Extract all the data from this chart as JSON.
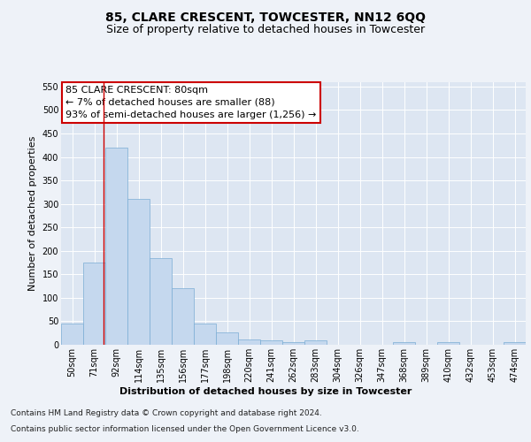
{
  "title": "85, CLARE CRESCENT, TOWCESTER, NN12 6QQ",
  "subtitle": "Size of property relative to detached houses in Towcester",
  "xlabel": "Distribution of detached houses by size in Towcester",
  "ylabel": "Number of detached properties",
  "footer_line1": "Contains HM Land Registry data © Crown copyright and database right 2024.",
  "footer_line2": "Contains public sector information licensed under the Open Government Licence v3.0.",
  "bar_labels": [
    "50sqm",
    "71sqm",
    "92sqm",
    "114sqm",
    "135sqm",
    "156sqm",
    "177sqm",
    "198sqm",
    "220sqm",
    "241sqm",
    "262sqm",
    "283sqm",
    "304sqm",
    "326sqm",
    "347sqm",
    "368sqm",
    "389sqm",
    "410sqm",
    "432sqm",
    "453sqm",
    "474sqm"
  ],
  "bar_values": [
    46,
    175,
    420,
    310,
    185,
    120,
    46,
    26,
    12,
    10,
    6,
    10,
    0,
    0,
    0,
    5,
    0,
    5,
    0,
    0,
    5
  ],
  "bar_color": "#c5d8ee",
  "bar_edge_color": "#7aadd4",
  "ylim": [
    0,
    560
  ],
  "yticks": [
    0,
    50,
    100,
    150,
    200,
    250,
    300,
    350,
    400,
    450,
    500,
    550
  ],
  "annotation_line1": "85 CLARE CRESCENT: 80sqm",
  "annotation_line2": "← 7% of detached houses are smaller (88)",
  "annotation_line3": "93% of semi-detached houses are larger (1,256) →",
  "red_line_x": 1.42,
  "bg_color": "#eef2f8",
  "plot_bg_color": "#dde6f2",
  "grid_color": "#ffffff",
  "title_fontsize": 10,
  "subtitle_fontsize": 9,
  "axis_label_fontsize": 8,
  "tick_fontsize": 7,
  "footer_fontsize": 6.5,
  "annot_fontsize": 8
}
